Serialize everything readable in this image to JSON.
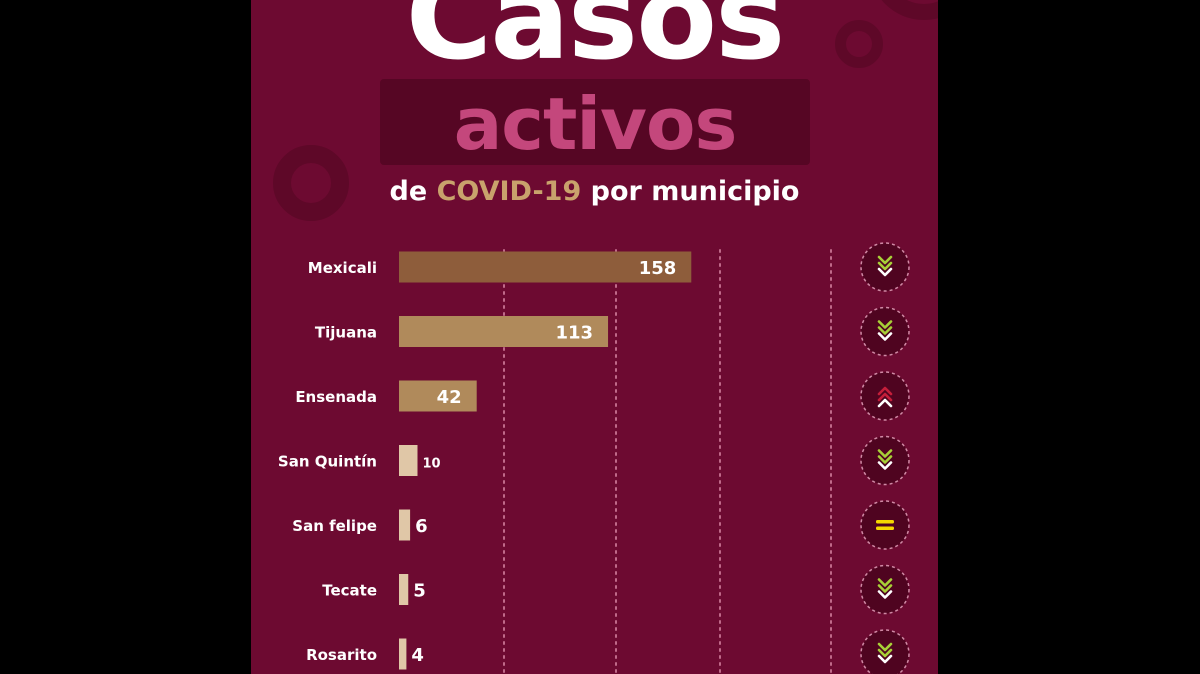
{
  "title": {
    "main": "Casos",
    "sub": "activos",
    "subtitle_prefix": "de ",
    "subtitle_highlight": "COVID-19",
    "subtitle_suffix": " por municipio"
  },
  "colors": {
    "background": "#6d0a31",
    "bar_top": "#8e5d3b",
    "bar_mid": "#b08a5b",
    "bar_low": "#e0c7a7",
    "trend_down": "#a8d038",
    "trend_up": "#c41e3a",
    "trend_equal": "#f5d800"
  },
  "chart_data": {
    "type": "bar",
    "orientation": "horizontal",
    "categories": [
      "Mexicali",
      "Tijuana",
      "Ensenada",
      "San Quintín",
      "San felipe",
      "Tecate",
      "Rosarito"
    ],
    "values": [
      158,
      113,
      42,
      10,
      6,
      5,
      4
    ],
    "trends": [
      "down",
      "down",
      "up",
      "down",
      "equal",
      "down",
      "down"
    ],
    "grid": true,
    "xlim": [
      0,
      240
    ]
  }
}
